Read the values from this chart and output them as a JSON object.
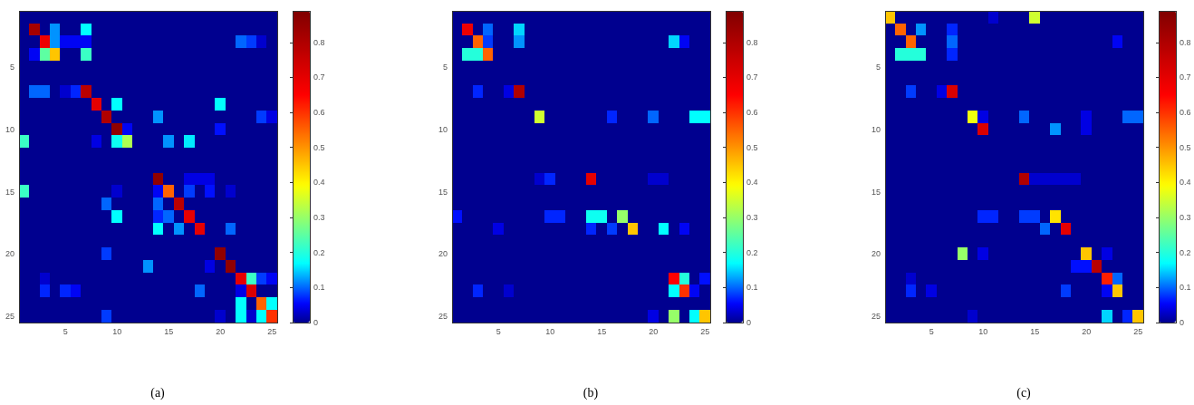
{
  "chart_data": [
    {
      "type": "heatmap",
      "categories": [
        null,
        null,
        null,
        null,
        "5",
        null,
        null,
        null,
        null,
        "10",
        null,
        null,
        null,
        null,
        "15",
        null,
        null,
        null,
        null,
        "20",
        null,
        null,
        null,
        null,
        "25"
      ],
      "y_categories": [
        null,
        null,
        null,
        null,
        "5",
        null,
        null,
        null,
        null,
        "10",
        null,
        null,
        null,
        null,
        "15",
        null,
        null,
        null,
        null,
        "20",
        null,
        null,
        null,
        null,
        "25"
      ],
      "clim": [
        0,
        0.89
      ],
      "cticks": [
        0,
        0.1,
        0.2,
        0.3,
        0.4,
        0.5,
        0.6,
        0.7,
        0.8
      ],
      "annotations": [
        "(a)"
      ],
      "cells": [
        [
          0,
          0,
          0,
          0,
          0,
          0,
          0,
          0,
          0,
          0,
          0,
          0,
          0,
          0,
          0,
          0,
          0,
          0,
          0,
          0,
          0,
          0,
          0,
          0,
          0
        ],
        [
          0,
          0.82,
          0,
          0.12,
          0,
          0,
          0.17,
          0,
          0,
          0,
          0,
          0,
          0,
          0,
          0,
          0,
          0,
          0,
          0,
          0,
          0,
          0,
          0,
          0,
          0
        ],
        [
          0,
          0,
          0.68,
          0.12,
          0.05,
          0.05,
          0.05,
          0,
          0,
          0,
          0,
          0,
          0,
          0,
          0,
          0,
          0,
          0,
          0,
          0,
          0,
          0.1,
          0.08,
          0.03,
          0
        ],
        [
          0,
          0.05,
          0.25,
          0.45,
          0,
          0,
          0.22,
          0,
          0,
          0,
          0,
          0,
          0,
          0,
          0,
          0,
          0,
          0,
          0,
          0,
          0,
          0,
          0,
          0,
          0
        ],
        [
          0,
          0,
          0,
          0,
          0,
          0,
          0,
          0,
          0,
          0,
          0,
          0,
          0,
          0,
          0,
          0,
          0,
          0,
          0,
          0,
          0,
          0,
          0,
          0,
          0
        ],
        [
          0,
          0,
          0,
          0,
          0,
          0,
          0,
          0,
          0,
          0,
          0,
          0,
          0,
          0,
          0,
          0,
          0,
          0,
          0,
          0,
          0,
          0,
          0,
          0,
          0
        ],
        [
          0,
          0.1,
          0.1,
          0,
          0.03,
          0.07,
          0.78,
          0,
          0,
          0,
          0,
          0,
          0,
          0,
          0,
          0,
          0,
          0,
          0,
          0,
          0,
          0,
          0,
          0,
          0
        ],
        [
          0,
          0,
          0,
          0,
          0,
          0,
          0,
          0.7,
          0,
          0.17,
          0,
          0,
          0,
          0,
          0,
          0,
          0,
          0,
          0,
          0.17,
          0,
          0,
          0,
          0,
          0
        ],
        [
          0,
          0,
          0,
          0,
          0,
          0,
          0,
          0,
          0.8,
          0,
          0,
          0,
          0,
          0.12,
          0,
          0,
          0,
          0,
          0,
          0,
          0,
          0,
          0,
          0.08,
          0.04
        ],
        [
          0,
          0,
          0,
          0,
          0,
          0,
          0,
          0,
          0,
          0.86,
          0.05,
          0,
          0,
          0,
          0,
          0,
          0,
          0,
          0,
          0.06,
          0,
          0,
          0,
          0,
          0
        ],
        [
          0.22,
          0,
          0,
          0,
          0,
          0,
          0,
          0.04,
          0,
          0.18,
          0.32,
          0,
          0,
          0,
          0.12,
          0,
          0.16,
          0,
          0,
          0,
          0,
          0,
          0,
          0,
          0
        ],
        [
          0,
          0,
          0,
          0,
          0,
          0,
          0,
          0,
          0,
          0,
          0,
          0,
          0,
          0,
          0,
          0,
          0,
          0,
          0,
          0,
          0,
          0,
          0,
          0,
          0
        ],
        [
          0,
          0,
          0,
          0,
          0,
          0,
          0,
          0,
          0,
          0,
          0,
          0,
          0,
          0,
          0,
          0,
          0,
          0,
          0,
          0,
          0,
          0,
          0,
          0,
          0
        ],
        [
          0,
          0,
          0,
          0,
          0,
          0,
          0,
          0,
          0,
          0,
          0,
          0,
          0,
          0.86,
          0,
          0,
          0.04,
          0.04,
          0.04,
          0,
          0,
          0,
          0,
          0,
          0
        ],
        [
          0.22,
          0,
          0,
          0,
          0,
          0,
          0,
          0,
          0,
          0.03,
          0,
          0,
          0,
          0.05,
          0.55,
          0,
          0.08,
          0,
          0.06,
          0,
          0.03,
          0,
          0,
          0,
          0
        ],
        [
          0,
          0,
          0,
          0,
          0,
          0,
          0,
          0,
          0.1,
          0,
          0,
          0,
          0,
          0.1,
          0,
          0.78,
          0,
          0,
          0,
          0,
          0,
          0,
          0,
          0,
          0
        ],
        [
          0,
          0,
          0,
          0,
          0,
          0,
          0,
          0,
          0,
          0.17,
          0,
          0,
          0,
          0.07,
          0.1,
          0,
          0.7,
          0,
          0,
          0,
          0,
          0,
          0,
          0,
          0
        ],
        [
          0,
          0,
          0,
          0,
          0,
          0,
          0,
          0,
          0,
          0,
          0,
          0,
          0,
          0.17,
          0,
          0.12,
          0,
          0.7,
          0,
          0,
          0.1,
          0,
          0,
          0,
          0
        ],
        [
          0,
          0,
          0,
          0,
          0,
          0,
          0,
          0,
          0,
          0,
          0,
          0,
          0,
          0,
          0,
          0,
          0,
          0,
          0,
          0,
          0,
          0,
          0,
          0,
          0
        ],
        [
          0,
          0,
          0,
          0,
          0,
          0,
          0,
          0,
          0.08,
          0,
          0,
          0,
          0,
          0,
          0,
          0,
          0,
          0,
          0,
          0.86,
          0,
          0,
          0,
          0,
          0
        ],
        [
          0,
          0,
          0,
          0,
          0,
          0,
          0,
          0,
          0,
          0,
          0,
          0,
          0.12,
          0,
          0,
          0,
          0,
          0,
          0.04,
          0,
          0.86,
          0,
          0,
          0,
          0
        ],
        [
          0,
          0,
          0.03,
          0,
          0,
          0,
          0,
          0,
          0,
          0,
          0,
          0,
          0,
          0,
          0,
          0,
          0,
          0,
          0,
          0,
          0,
          0.7,
          0.22,
          0.08,
          0.05
        ],
        [
          0,
          0,
          0.07,
          0,
          0.07,
          0.05,
          0,
          0,
          0,
          0,
          0,
          0,
          0,
          0,
          0,
          0,
          0,
          0.1,
          0,
          0,
          0,
          0.04,
          0.72,
          0,
          0
        ],
        [
          0,
          0,
          0,
          0,
          0,
          0,
          0,
          0,
          0,
          0,
          0,
          0,
          0,
          0,
          0,
          0,
          0,
          0,
          0,
          0,
          0,
          0.17,
          0,
          0.55,
          0.17
        ],
        [
          0,
          0,
          0,
          0,
          0,
          0,
          0,
          0,
          0.08,
          0,
          0,
          0,
          0,
          0,
          0,
          0,
          0,
          0,
          0,
          0.03,
          0,
          0.17,
          0.03,
          0.17,
          0.6
        ]
      ]
    },
    {
      "type": "heatmap",
      "categories": [
        null,
        null,
        null,
        null,
        "5",
        null,
        null,
        null,
        null,
        "10",
        null,
        null,
        null,
        null,
        "15",
        null,
        null,
        null,
        null,
        "20",
        null,
        null,
        null,
        null,
        "25"
      ],
      "y_categories": [
        null,
        null,
        null,
        null,
        "5",
        null,
        null,
        null,
        null,
        "10",
        null,
        null,
        null,
        null,
        "15",
        null,
        null,
        null,
        null,
        "20",
        null,
        null,
        null,
        null,
        "25"
      ],
      "clim": [
        0,
        0.89
      ],
      "cticks": [
        0,
        0.1,
        0.2,
        0.3,
        0.4,
        0.5,
        0.6,
        0.7,
        0.8
      ],
      "annotations": [
        "(b)"
      ],
      "cells": [
        [
          0,
          0,
          0,
          0,
          0,
          0,
          0,
          0,
          0,
          0,
          0,
          0,
          0,
          0,
          0,
          0,
          0,
          0,
          0,
          0,
          0,
          0,
          0,
          0,
          0
        ],
        [
          0,
          0.68,
          0,
          0.1,
          0,
          0,
          0.15,
          0,
          0,
          0,
          0,
          0,
          0,
          0,
          0,
          0,
          0,
          0,
          0,
          0,
          0,
          0,
          0,
          0,
          0
        ],
        [
          0,
          0,
          0.55,
          0.08,
          0,
          0,
          0.12,
          0,
          0,
          0,
          0,
          0,
          0,
          0,
          0,
          0,
          0,
          0,
          0,
          0,
          0,
          0.15,
          0.05,
          0,
          0
        ],
        [
          0,
          0.2,
          0.2,
          0.55,
          0,
          0,
          0,
          0,
          0,
          0,
          0,
          0,
          0,
          0,
          0,
          0,
          0,
          0,
          0,
          0,
          0,
          0,
          0,
          0,
          0
        ],
        [
          0,
          0,
          0,
          0,
          0,
          0,
          0,
          0,
          0,
          0,
          0,
          0,
          0,
          0,
          0,
          0,
          0,
          0,
          0,
          0,
          0,
          0,
          0,
          0,
          0
        ],
        [
          0,
          0,
          0,
          0,
          0,
          0,
          0,
          0,
          0,
          0,
          0,
          0,
          0,
          0,
          0,
          0,
          0,
          0,
          0,
          0,
          0,
          0,
          0,
          0,
          0
        ],
        [
          0,
          0,
          0.07,
          0,
          0,
          0.04,
          0.8,
          0,
          0,
          0,
          0,
          0,
          0,
          0,
          0,
          0,
          0,
          0,
          0,
          0,
          0,
          0,
          0,
          0,
          0
        ],
        [
          0,
          0,
          0,
          0,
          0,
          0,
          0,
          0,
          0,
          0,
          0,
          0,
          0,
          0,
          0,
          0,
          0,
          0,
          0,
          0,
          0,
          0,
          0,
          0,
          0
        ],
        [
          0,
          0,
          0,
          0,
          0,
          0,
          0,
          0,
          0.35,
          0,
          0,
          0,
          0,
          0,
          0,
          0.07,
          0,
          0,
          0,
          0.1,
          0,
          0,
          0,
          0.17,
          0.17
        ],
        [
          0,
          0,
          0,
          0,
          0,
          0,
          0,
          0,
          0,
          0,
          0,
          0,
          0,
          0,
          0,
          0,
          0,
          0,
          0,
          0,
          0,
          0,
          0,
          0,
          0
        ],
        [
          0,
          0,
          0,
          0,
          0,
          0,
          0,
          0,
          0,
          0,
          0,
          0,
          0,
          0,
          0,
          0,
          0,
          0,
          0,
          0,
          0,
          0,
          0,
          0,
          0
        ],
        [
          0,
          0,
          0,
          0,
          0,
          0,
          0,
          0,
          0,
          0,
          0,
          0,
          0,
          0,
          0,
          0,
          0,
          0,
          0,
          0,
          0,
          0,
          0,
          0,
          0
        ],
        [
          0,
          0,
          0,
          0,
          0,
          0,
          0,
          0,
          0,
          0,
          0,
          0,
          0,
          0,
          0,
          0,
          0,
          0,
          0,
          0,
          0,
          0,
          0,
          0,
          0
        ],
        [
          0,
          0,
          0,
          0,
          0,
          0,
          0,
          0,
          0.03,
          0.07,
          0,
          0,
          0,
          0.7,
          0,
          0,
          0,
          0,
          0,
          0.03,
          0.03,
          0,
          0,
          0,
          0
        ],
        [
          0,
          0,
          0,
          0,
          0,
          0,
          0,
          0,
          0,
          0,
          0,
          0,
          0,
          0,
          0,
          0,
          0,
          0,
          0,
          0,
          0,
          0,
          0,
          0,
          0
        ],
        [
          0,
          0,
          0,
          0,
          0,
          0,
          0,
          0,
          0,
          0,
          0,
          0,
          0,
          0,
          0,
          0,
          0,
          0,
          0,
          0,
          0,
          0,
          0,
          0,
          0
        ],
        [
          0.06,
          0,
          0,
          0,
          0,
          0,
          0,
          0,
          0,
          0.07,
          0.07,
          0,
          0,
          0.18,
          0.18,
          0,
          0.3,
          0,
          0,
          0,
          0,
          0,
          0,
          0,
          0
        ],
        [
          0,
          0,
          0,
          0,
          0.04,
          0,
          0,
          0,
          0,
          0,
          0,
          0,
          0,
          0.07,
          0,
          0.08,
          0,
          0.45,
          0,
          0,
          0.17,
          0,
          0.05,
          0,
          0
        ],
        [
          0,
          0,
          0,
          0,
          0,
          0,
          0,
          0,
          0,
          0,
          0,
          0,
          0,
          0,
          0,
          0,
          0,
          0,
          0,
          0,
          0,
          0,
          0,
          0,
          0
        ],
        [
          0,
          0,
          0,
          0,
          0,
          0,
          0,
          0,
          0,
          0,
          0,
          0,
          0,
          0,
          0,
          0,
          0,
          0,
          0,
          0,
          0,
          0,
          0,
          0,
          0
        ],
        [
          0,
          0,
          0,
          0,
          0,
          0,
          0,
          0,
          0,
          0,
          0,
          0,
          0,
          0,
          0,
          0,
          0,
          0,
          0,
          0,
          0,
          0,
          0,
          0,
          0
        ],
        [
          0,
          0,
          0,
          0,
          0,
          0,
          0,
          0,
          0,
          0,
          0,
          0,
          0,
          0,
          0,
          0,
          0,
          0,
          0,
          0,
          0,
          0.65,
          0.2,
          0,
          0.06
        ],
        [
          0,
          0,
          0.07,
          0,
          0,
          0.03,
          0,
          0,
          0,
          0,
          0,
          0,
          0,
          0,
          0,
          0,
          0,
          0,
          0,
          0,
          0,
          0.17,
          0.6,
          0.05,
          0
        ],
        [
          0,
          0,
          0,
          0,
          0,
          0,
          0,
          0,
          0,
          0,
          0,
          0,
          0,
          0,
          0,
          0,
          0,
          0,
          0,
          0,
          0,
          0,
          0,
          0,
          0
        ],
        [
          0,
          0,
          0,
          0,
          0,
          0,
          0,
          0,
          0,
          0,
          0,
          0,
          0,
          0,
          0,
          0,
          0,
          0,
          0,
          0.04,
          0,
          0.3,
          0,
          0.17,
          0.45
        ]
      ]
    },
    {
      "type": "heatmap",
      "categories": [
        null,
        null,
        null,
        null,
        "5",
        null,
        null,
        null,
        null,
        "10",
        null,
        null,
        null,
        null,
        "15",
        null,
        null,
        null,
        null,
        "20",
        null,
        null,
        null,
        null,
        "25"
      ],
      "y_categories": [
        null,
        null,
        null,
        null,
        "5",
        null,
        null,
        null,
        null,
        "10",
        null,
        null,
        null,
        null,
        "15",
        null,
        null,
        null,
        null,
        "20",
        null,
        null,
        null,
        null,
        "25"
      ],
      "clim": [
        0,
        0.89
      ],
      "cticks": [
        0,
        0.1,
        0.2,
        0.3,
        0.4,
        0.5,
        0.6,
        0.7,
        0.8
      ],
      "annotations": [
        "(c)"
      ],
      "cells": [
        [
          0.45,
          0,
          0,
          0,
          0,
          0,
          0,
          0,
          0,
          0,
          0.03,
          0,
          0,
          0,
          0.35,
          0,
          0,
          0,
          0,
          0,
          0,
          0,
          0,
          0,
          0
        ],
        [
          0,
          0.55,
          0,
          0.12,
          0,
          0,
          0.07,
          0,
          0,
          0,
          0,
          0,
          0,
          0,
          0,
          0,
          0,
          0,
          0,
          0,
          0,
          0,
          0,
          0,
          0
        ],
        [
          0,
          0,
          0.55,
          0,
          0,
          0,
          0.1,
          0,
          0,
          0,
          0,
          0,
          0,
          0,
          0,
          0,
          0,
          0,
          0,
          0,
          0,
          0,
          0.05,
          0,
          0
        ],
        [
          0,
          0.2,
          0.2,
          0.2,
          0,
          0,
          0.07,
          0,
          0,
          0,
          0,
          0,
          0,
          0,
          0,
          0,
          0,
          0,
          0,
          0,
          0,
          0,
          0,
          0,
          0
        ],
        [
          0,
          0,
          0,
          0,
          0,
          0,
          0,
          0,
          0,
          0,
          0,
          0,
          0,
          0,
          0,
          0,
          0,
          0,
          0,
          0,
          0,
          0,
          0,
          0,
          0
        ],
        [
          0,
          0,
          0,
          0,
          0,
          0,
          0,
          0,
          0,
          0,
          0,
          0,
          0,
          0,
          0,
          0,
          0,
          0,
          0,
          0,
          0,
          0,
          0,
          0,
          0
        ],
        [
          0,
          0,
          0.08,
          0,
          0,
          0.04,
          0.72,
          0,
          0,
          0,
          0,
          0,
          0,
          0,
          0,
          0,
          0,
          0,
          0,
          0,
          0,
          0,
          0,
          0,
          0
        ],
        [
          0,
          0,
          0,
          0,
          0,
          0,
          0,
          0,
          0,
          0,
          0,
          0,
          0,
          0,
          0,
          0,
          0,
          0,
          0,
          0,
          0,
          0,
          0,
          0,
          0
        ],
        [
          0,
          0,
          0,
          0,
          0,
          0,
          0,
          0,
          0.38,
          0.04,
          0,
          0,
          0,
          0.1,
          0,
          0,
          0,
          0,
          0,
          0.04,
          0,
          0,
          0,
          0.1,
          0.1
        ],
        [
          0,
          0,
          0,
          0,
          0,
          0,
          0,
          0,
          0,
          0.72,
          0,
          0,
          0,
          0,
          0,
          0,
          0.12,
          0,
          0,
          0.04,
          0,
          0,
          0,
          0,
          0
        ],
        [
          0,
          0,
          0,
          0,
          0,
          0,
          0,
          0,
          0,
          0,
          0,
          0,
          0,
          0,
          0,
          0,
          0,
          0,
          0,
          0,
          0,
          0,
          0,
          0,
          0
        ],
        [
          0,
          0,
          0,
          0,
          0,
          0,
          0,
          0,
          0,
          0,
          0,
          0,
          0,
          0,
          0,
          0,
          0,
          0,
          0,
          0,
          0,
          0,
          0,
          0,
          0
        ],
        [
          0,
          0,
          0,
          0,
          0,
          0,
          0,
          0,
          0,
          0,
          0,
          0,
          0,
          0,
          0,
          0,
          0,
          0,
          0,
          0,
          0,
          0,
          0,
          0,
          0
        ],
        [
          0,
          0,
          0,
          0,
          0,
          0,
          0,
          0,
          0,
          0,
          0,
          0,
          0,
          0.8,
          0.03,
          0.03,
          0.03,
          0.03,
          0.03,
          0,
          0,
          0,
          0,
          0,
          0
        ],
        [
          0,
          0,
          0,
          0,
          0,
          0,
          0,
          0,
          0,
          0,
          0,
          0,
          0,
          0,
          0,
          0,
          0,
          0,
          0,
          0,
          0,
          0,
          0,
          0,
          0
        ],
        [
          0,
          0,
          0,
          0,
          0,
          0,
          0,
          0,
          0,
          0,
          0,
          0,
          0,
          0,
          0,
          0,
          0,
          0,
          0,
          0,
          0,
          0,
          0,
          0,
          0
        ],
        [
          0,
          0,
          0,
          0,
          0,
          0,
          0,
          0,
          0,
          0.07,
          0.07,
          0,
          0,
          0.08,
          0.08,
          0,
          0.42,
          0,
          0,
          0,
          0,
          0,
          0,
          0,
          0
        ],
        [
          0,
          0,
          0,
          0,
          0,
          0,
          0,
          0,
          0,
          0,
          0,
          0,
          0,
          0,
          0,
          0.1,
          0,
          0.7,
          0,
          0,
          0,
          0,
          0,
          0,
          0
        ],
        [
          0,
          0,
          0,
          0,
          0,
          0,
          0,
          0,
          0,
          0,
          0,
          0,
          0,
          0,
          0,
          0,
          0,
          0,
          0,
          0,
          0,
          0,
          0,
          0,
          0
        ],
        [
          0,
          0,
          0,
          0,
          0,
          0,
          0,
          0.3,
          0,
          0.04,
          0,
          0,
          0,
          0,
          0,
          0,
          0,
          0,
          0,
          0.45,
          0,
          0.04,
          0,
          0,
          0
        ],
        [
          0,
          0,
          0,
          0,
          0,
          0,
          0,
          0,
          0,
          0,
          0,
          0,
          0,
          0,
          0,
          0,
          0,
          0,
          0.06,
          0.06,
          0.78,
          0,
          0,
          0,
          0
        ],
        [
          0,
          0,
          0.03,
          0,
          0,
          0,
          0,
          0,
          0,
          0,
          0,
          0,
          0,
          0,
          0,
          0,
          0,
          0,
          0,
          0,
          0,
          0.62,
          0.1,
          0,
          0
        ],
        [
          0,
          0,
          0.07,
          0,
          0.04,
          0,
          0,
          0,
          0,
          0,
          0,
          0,
          0,
          0,
          0,
          0,
          0,
          0.08,
          0,
          0,
          0,
          0.05,
          0.45,
          0,
          0
        ],
        [
          0,
          0,
          0,
          0,
          0,
          0,
          0,
          0,
          0,
          0,
          0,
          0,
          0,
          0,
          0,
          0,
          0,
          0,
          0,
          0,
          0,
          0,
          0,
          0,
          0
        ],
        [
          0,
          0,
          0,
          0,
          0,
          0,
          0,
          0,
          0.03,
          0,
          0,
          0,
          0,
          0,
          0,
          0,
          0,
          0,
          0,
          0,
          0,
          0.15,
          0,
          0.07,
          0.45
        ]
      ]
    }
  ]
}
